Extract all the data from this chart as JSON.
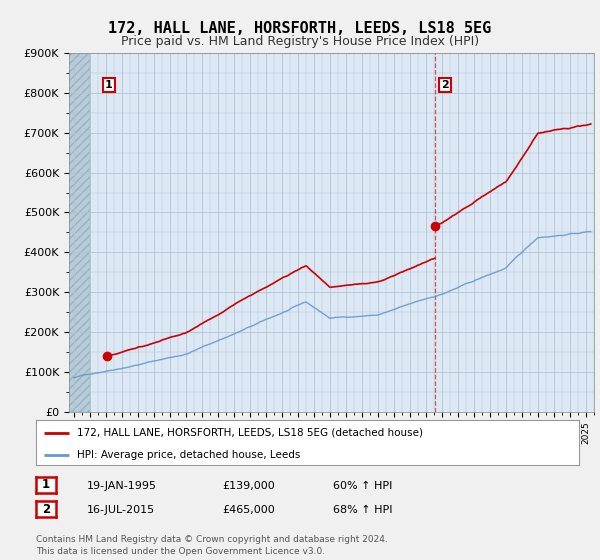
{
  "title": "172, HALL LANE, HORSFORTH, LEEDS, LS18 5EG",
  "subtitle": "Price paid vs. HM Land Registry's House Price Index (HPI)",
  "ylabel_ticks": [
    "£0",
    "£100K",
    "£200K",
    "£300K",
    "£400K",
    "£500K",
    "£600K",
    "£700K",
    "£800K",
    "£900K"
  ],
  "ytick_values": [
    0,
    100000,
    200000,
    300000,
    400000,
    500000,
    600000,
    700000,
    800000,
    900000
  ],
  "ylim": [
    0,
    900000
  ],
  "sale1_date": 1995.05,
  "sale1_price": 139000,
  "sale2_date": 2015.54,
  "sale2_price": 465000,
  "legend_line1": "172, HALL LANE, HORSFORTH, LEEDS, LS18 5EG (detached house)",
  "legend_line2": "HPI: Average price, detached house, Leeds",
  "table_row1": [
    "1",
    "19-JAN-1995",
    "£139,000",
    "60% ↑ HPI"
  ],
  "table_row2": [
    "2",
    "16-JUL-2015",
    "£465,000",
    "68% ↑ HPI"
  ],
  "footer1": "Contains HM Land Registry data © Crown copyright and database right 2024.",
  "footer2": "This data is licensed under the Open Government Licence v3.0.",
  "red_color": "#cc0000",
  "blue_color": "#6699cc",
  "plot_bg_color": "#dce8f4",
  "hatch_color": "#b8ccd8",
  "grid_color": "#b0c4d4",
  "title_fontsize": 11,
  "subtitle_fontsize": 9,
  "tick_fontsize": 8
}
